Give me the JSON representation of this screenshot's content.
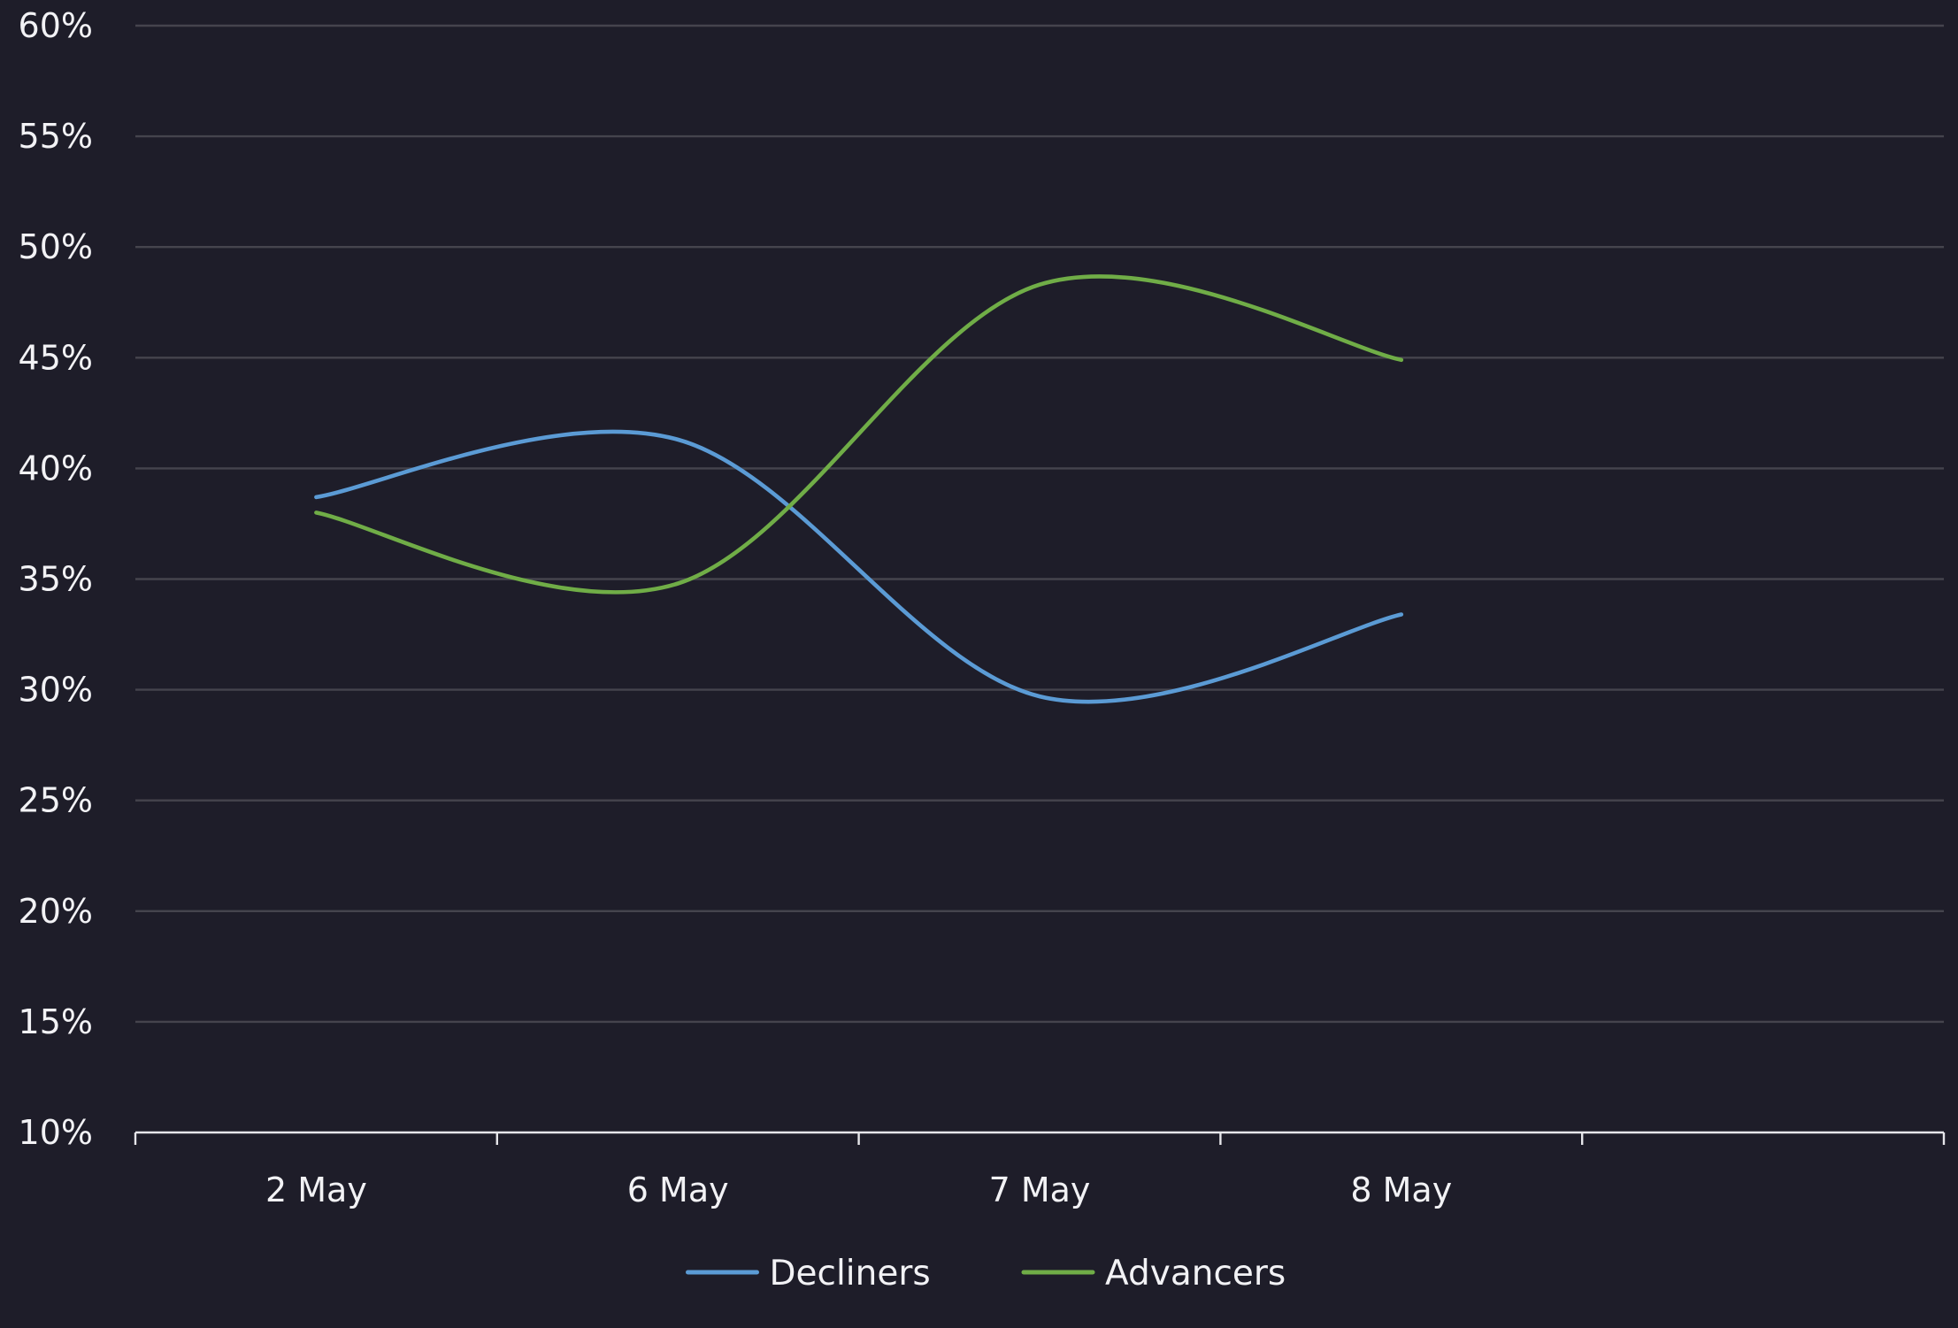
{
  "chart_data": {
    "type": "line",
    "title": "",
    "xlabel": "",
    "ylabel": "",
    "categories": [
      "2 May",
      "6 May",
      "7 May",
      "8 May"
    ],
    "x_slots": 5,
    "ylim": [
      10,
      60
    ],
    "y_ticks": [
      10,
      15,
      20,
      25,
      30,
      35,
      40,
      45,
      50,
      55,
      60
    ],
    "y_tick_labels": [
      "10%",
      "15%",
      "20%",
      "25%",
      "30%",
      "35%",
      "40%",
      "45%",
      "50%",
      "55%",
      "60%"
    ],
    "grid": true,
    "smooth": true,
    "legend_position": "bottom",
    "series": [
      {
        "name": "Decliners",
        "color": "#5b9bd5",
        "values": [
          38.7,
          41.3,
          29.7,
          33.4
        ]
      },
      {
        "name": "Advancers",
        "color": "#70ad47",
        "values": [
          38.0,
          34.8,
          48.3,
          44.9
        ]
      }
    ]
  },
  "colors": {
    "background": "#1e1d29",
    "gridline": "#45444d",
    "axis": "#e6e6ea",
    "text": "#f2f2f5"
  }
}
